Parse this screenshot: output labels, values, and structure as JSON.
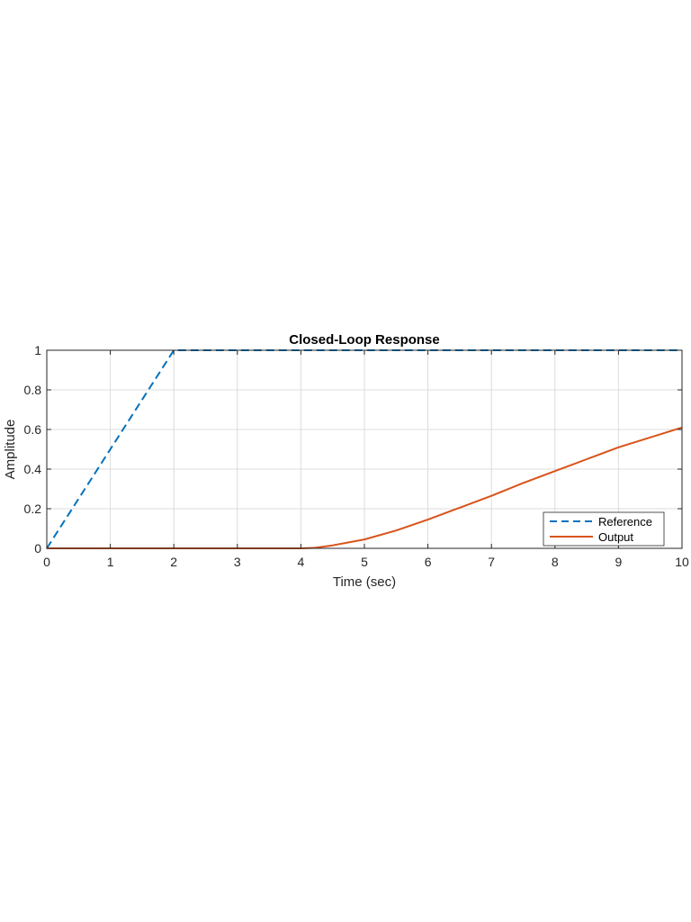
{
  "chart_data": {
    "type": "line",
    "title": "Closed-Loop Response",
    "xlabel": "Time (sec)",
    "ylabel": "Amplitude",
    "xlim": [
      0,
      10
    ],
    "ylim": [
      0,
      1
    ],
    "xticks": [
      0,
      1,
      2,
      3,
      4,
      5,
      6,
      7,
      8,
      9,
      10
    ],
    "yticks": [
      0,
      0.2,
      0.4,
      0.6,
      0.8,
      1
    ],
    "ytick_labels": [
      "0",
      "0.2",
      "0.4",
      "0.6",
      "0.8",
      "1"
    ],
    "grid": true,
    "legend_position": "bottom-right",
    "series": [
      {
        "name": "Reference",
        "style": "dashed",
        "color": "#0072BD",
        "x": [
          0,
          2,
          10
        ],
        "y": [
          0,
          1,
          1
        ]
      },
      {
        "name": "Output",
        "style": "solid",
        "color": "#D95319",
        "x": [
          0,
          4,
          4.2,
          4.5,
          5,
          5.5,
          6,
          6.5,
          7,
          7.5,
          8,
          8.5,
          9,
          9.5,
          10
        ],
        "y": [
          0,
          0,
          0.002,
          0.015,
          0.045,
          0.09,
          0.145,
          0.205,
          0.265,
          0.33,
          0.39,
          0.45,
          0.51,
          0.56,
          0.61
        ]
      }
    ]
  }
}
